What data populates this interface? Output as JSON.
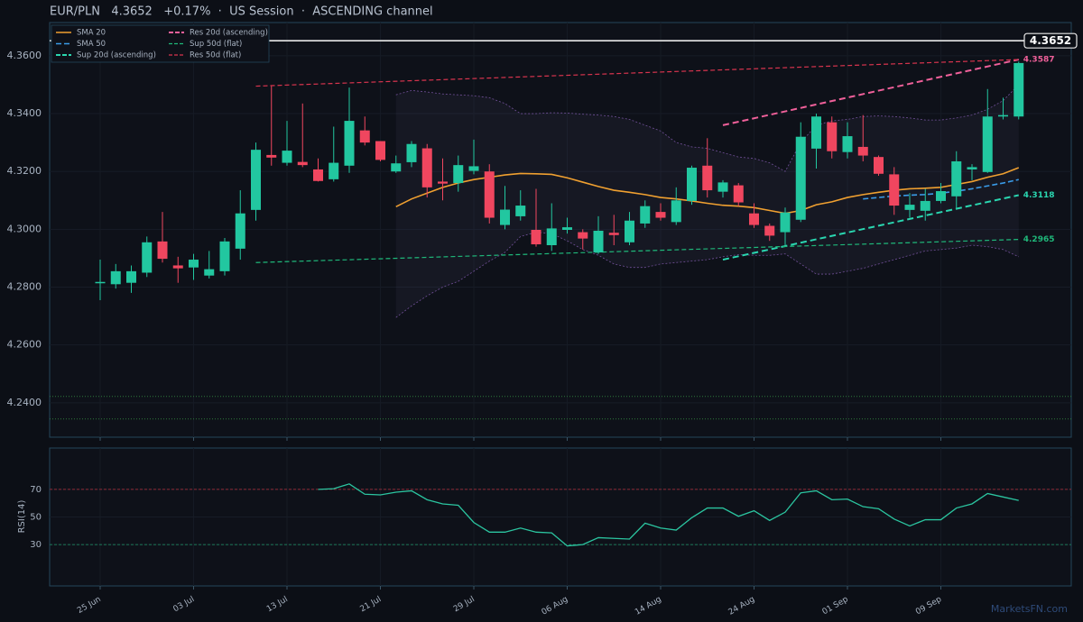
{
  "chart_data": {
    "type": "candlestick",
    "title": "EUR/PLN   4.3652   +0.17%  ·  US Session  ·  ASCENDING channel",
    "colors": {
      "up": "#22c7a0",
      "down": "#f0465f"
    },
    "ylim": [
      4.2281,
      4.3715
    ],
    "yticks": [
      {
        "value": 4.24,
        "label": "4.2400"
      },
      {
        "value": 4.26,
        "label": "4.2600"
      },
      {
        "value": 4.28,
        "label": "4.2800"
      },
      {
        "value": 4.3,
        "label": "4.3000"
      },
      {
        "value": 4.32,
        "label": "4.3200"
      },
      {
        "value": 4.34,
        "label": "4.3400"
      },
      {
        "value": 4.36,
        "label": "4.3600"
      }
    ],
    "grid": true,
    "legend": "upper left",
    "ohlc": {
      "open": [
        4.2815,
        4.281,
        4.2815,
        4.285,
        4.2958,
        4.2875,
        4.2868,
        4.284,
        4.2855,
        4.2933,
        4.3067,
        4.3257,
        4.323,
        4.3233,
        4.3207,
        4.3173,
        4.322,
        4.3342,
        4.3305,
        4.32,
        4.3232,
        4.328,
        4.3165,
        4.316,
        4.3202,
        4.32,
        4.3015,
        4.3045,
        4.2998,
        4.2945,
        4.2998,
        4.299,
        4.292,
        4.2988,
        4.2955,
        4.302,
        4.306,
        4.3025,
        4.3098,
        4.322,
        4.313,
        4.3152,
        4.3055,
        4.3012,
        4.299,
        4.3033,
        4.3279,
        4.337,
        4.3267,
        4.3285,
        4.325,
        4.319,
        4.3067,
        4.3064,
        4.3098,
        4.3114,
        4.3207,
        4.3198,
        4.339,
        4.339
      ],
      "high": [
        4.2895,
        4.288,
        4.2875,
        4.2975,
        4.306,
        4.2905,
        4.2915,
        4.2925,
        4.297,
        4.3135,
        4.33,
        4.3495,
        4.3375,
        4.3435,
        4.3245,
        4.3355,
        4.349,
        4.339,
        4.3305,
        4.3255,
        4.3305,
        4.3295,
        4.3245,
        4.3255,
        4.331,
        4.3225,
        4.315,
        4.3135,
        4.314,
        4.309,
        4.304,
        4.3,
        4.3045,
        4.305,
        4.306,
        4.31,
        4.309,
        4.3145,
        4.322,
        4.3315,
        4.317,
        4.316,
        4.309,
        4.302,
        4.3075,
        4.337,
        4.34,
        4.339,
        4.337,
        4.3395,
        4.3255,
        4.3215,
        4.3125,
        4.314,
        4.316,
        4.327,
        4.3225,
        4.3485,
        4.3455,
        4.358
      ],
      "low": [
        4.2755,
        4.2795,
        4.278,
        4.2835,
        4.2885,
        4.2815,
        4.2825,
        4.283,
        4.284,
        4.2895,
        4.303,
        4.322,
        4.322,
        4.3215,
        4.3165,
        4.3165,
        4.3195,
        4.329,
        4.3235,
        4.3195,
        4.3215,
        4.311,
        4.31,
        4.313,
        4.319,
        4.302,
        4.3,
        4.303,
        4.294,
        4.2925,
        4.2985,
        4.293,
        4.2915,
        4.2945,
        4.2945,
        4.3005,
        4.303,
        4.3015,
        4.3085,
        4.311,
        4.311,
        4.308,
        4.3005,
        4.296,
        4.2945,
        4.3025,
        4.321,
        4.3245,
        4.3245,
        4.3235,
        4.3185,
        4.305,
        4.304,
        4.303,
        4.309,
        4.307,
        4.317,
        4.3195,
        4.338,
        4.338
      ],
      "close": [
        4.2818,
        4.2855,
        4.2855,
        4.2955,
        4.2898,
        4.2865,
        4.2895,
        4.2862,
        4.2958,
        4.3055,
        4.3275,
        4.3248,
        4.3272,
        4.3222,
        4.3167,
        4.323,
        4.3375,
        4.33,
        4.324,
        4.3228,
        4.3295,
        4.3145,
        4.3158,
        4.3222,
        4.3218,
        4.304,
        4.3068,
        4.3082,
        4.2948,
        4.3003,
        4.3007,
        4.2968,
        4.2995,
        4.298,
        4.303,
        4.308,
        4.304,
        4.31,
        4.3213,
        4.3135,
        4.3162,
        4.3093,
        4.3015,
        4.2978,
        4.3058,
        4.332,
        4.339,
        4.327,
        4.3322,
        4.3255,
        4.3192,
        4.3082,
        4.3085,
        4.3098,
        4.3132,
        4.3235,
        4.3215,
        4.339,
        4.3395,
        4.3575
      ]
    },
    "bands": {
      "color": "#8a5fb8",
      "upper": [
        null,
        null,
        null,
        null,
        null,
        null,
        null,
        null,
        null,
        null,
        null,
        null,
        null,
        null,
        null,
        null,
        null,
        null,
        null,
        4.3465,
        4.348,
        4.3475,
        4.3468,
        4.3465,
        4.3462,
        4.3455,
        4.3435,
        4.34,
        4.34,
        4.3403,
        4.3402,
        4.3398,
        4.3395,
        4.339,
        4.338,
        4.336,
        4.334,
        4.33,
        4.3285,
        4.328,
        4.3265,
        4.325,
        4.3245,
        4.323,
        4.32,
        4.33,
        4.336,
        4.3375,
        4.338,
        4.339,
        4.3392,
        4.339,
        4.3385,
        4.3378,
        4.3378,
        4.3385,
        4.3395,
        4.3415,
        4.3445,
        4.35
      ],
      "lower": [
        null,
        null,
        null,
        null,
        null,
        null,
        null,
        null,
        null,
        null,
        null,
        null,
        null,
        null,
        null,
        null,
        null,
        null,
        null,
        4.2695,
        4.2735,
        4.277,
        4.28,
        4.282,
        4.2855,
        4.289,
        4.292,
        4.2975,
        4.299,
        4.2985,
        4.296,
        4.293,
        4.291,
        4.288,
        4.2868,
        4.2868,
        4.288,
        4.2885,
        4.289,
        4.2895,
        4.2905,
        4.2912,
        4.291,
        4.291,
        4.2915,
        4.288,
        4.2845,
        4.2845,
        4.2855,
        4.2865,
        4.288,
        4.2895,
        4.291,
        4.2925,
        4.293,
        4.2935,
        4.2945,
        4.294,
        4.293,
        4.2905
      ]
    },
    "lines": [
      {
        "name": "SMA 20",
        "color": "#f0a030",
        "dash": "solid",
        "values": [
          null,
          null,
          null,
          null,
          null,
          null,
          null,
          null,
          null,
          null,
          null,
          null,
          null,
          null,
          null,
          null,
          null,
          null,
          null,
          4.3078,
          4.3105,
          4.3125,
          4.3145,
          4.316,
          4.3172,
          4.318,
          4.3188,
          4.3193,
          4.3192,
          4.319,
          4.3178,
          4.3163,
          4.3148,
          4.3135,
          4.3128,
          4.312,
          4.311,
          4.3105,
          4.3098,
          4.309,
          4.3083,
          4.308,
          4.3075,
          4.3065,
          4.3055,
          4.3065,
          4.3085,
          4.3095,
          4.311,
          4.312,
          4.3128,
          4.3135,
          4.314,
          4.3142,
          4.3145,
          4.3155,
          4.3165,
          4.318,
          4.3192,
          4.3213
        ]
      },
      {
        "name": "SMA 50",
        "color": "#3a9be8",
        "dash": "dashed",
        "values": [
          null,
          null,
          null,
          null,
          null,
          null,
          null,
          null,
          null,
          null,
          null,
          null,
          null,
          null,
          null,
          null,
          null,
          null,
          null,
          null,
          null,
          null,
          null,
          null,
          null,
          null,
          null,
          null,
          null,
          null,
          null,
          null,
          null,
          null,
          null,
          null,
          null,
          null,
          null,
          null,
          null,
          null,
          null,
          null,
          null,
          null,
          null,
          null,
          null,
          4.3105,
          4.311,
          4.3115,
          4.3118,
          4.312,
          4.3125,
          4.3132,
          4.314,
          4.315,
          4.316,
          4.3172
        ]
      }
    ],
    "trendlines": [
      {
        "name": "Sup 20d (ascending)",
        "color": "#2ad6b0",
        "width": 2,
        "x": [
          40,
          59
        ],
        "values": [
          4.2895,
          4.3118
        ],
        "label": true
      },
      {
        "name": "Res 20d (ascending)",
        "color": "#f0609a",
        "width": 2,
        "x": [
          40,
          59
        ],
        "values": [
          4.336,
          4.3587
        ],
        "label": true
      },
      {
        "name": "Sup 50d (flat)",
        "color": "#1fb87a",
        "width": 1.2,
        "x": [
          10,
          59
        ],
        "values": [
          4.2885,
          4.2965
        ],
        "label": true
      },
      {
        "name": "Res 50d (flat)",
        "color": "#d8344e",
        "width": 1.2,
        "x": [
          10,
          59
        ],
        "values": [
          4.3495,
          4.3587
        ],
        "label": false
      }
    ],
    "levels": [
      {
        "value": 4.2422,
        "color": "#2e7a3a"
      },
      {
        "value": 4.2344,
        "color": "#2e7a3a"
      }
    ],
    "current_price": 4.3652,
    "watermark": "MarketsFN.com",
    "rsi": {
      "ylabel": "RSI(14)",
      "ylim": [
        0,
        100
      ],
      "yticks": [
        30,
        50,
        70
      ],
      "color": "#2bc5a0",
      "overbought": 70,
      "oversold": 30,
      "categories": [
        "25 Jun",
        null,
        null,
        null,
        null,
        null,
        "03 Jul",
        null,
        null,
        null,
        null,
        null,
        "13 Jul",
        null,
        null,
        null,
        null,
        null,
        "21 Jul",
        null,
        null,
        null,
        null,
        null,
        "29 Jul",
        null,
        null,
        null,
        null,
        null,
        "06 Aug",
        null,
        null,
        null,
        null,
        null,
        "14 Aug",
        null,
        null,
        null,
        null,
        null,
        "24 Aug",
        null,
        null,
        null,
        null,
        null,
        "01 Sep",
        null,
        null,
        null,
        null,
        null,
        "09 Sep",
        null,
        null,
        null,
        null,
        null
      ],
      "values": [
        null,
        null,
        null,
        null,
        null,
        null,
        null,
        null,
        null,
        null,
        null,
        null,
        null,
        null,
        70,
        70.5,
        74,
        66.5,
        66,
        68,
        69,
        62.5,
        59.5,
        58.5,
        46,
        39,
        39,
        42,
        39,
        38.5,
        29,
        30,
        35,
        34.5,
        34,
        45.5,
        42,
        40.5,
        49.5,
        56.5,
        56.5,
        50.5,
        54.5,
        47.5,
        53.5,
        67.5,
        69,
        62.5,
        63,
        57.5,
        56,
        48.5,
        43.5,
        48,
        48,
        56.5,
        59.5,
        67,
        64.5,
        62
      ]
    }
  }
}
